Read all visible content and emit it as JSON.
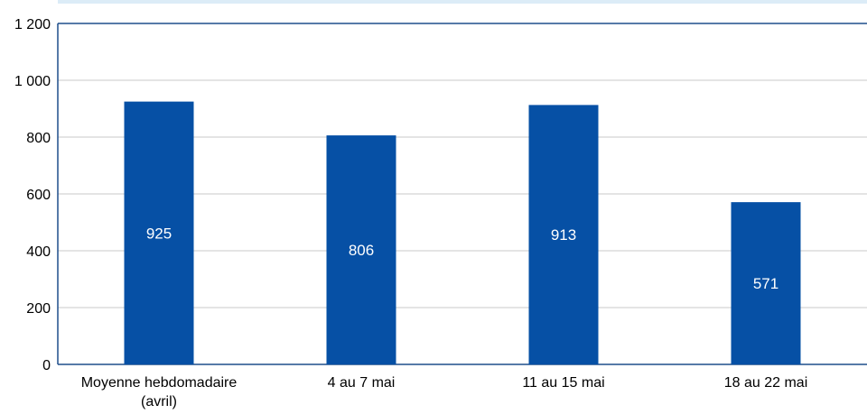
{
  "chart_data": {
    "type": "bar",
    "categories": [
      [
        "Moyenne hebdomadaire",
        "(avril)"
      ],
      [
        "4 au 7 mai"
      ],
      [
        "11 au 15 mai"
      ],
      [
        "18 au 22 mai"
      ]
    ],
    "values": [
      925,
      806,
      913,
      571
    ],
    "data_labels": [
      "925",
      "806",
      "913",
      "571"
    ],
    "y_ticks": [
      {
        "value": 0,
        "label": "0"
      },
      {
        "value": 200,
        "label": "200"
      },
      {
        "value": 400,
        "label": "400"
      },
      {
        "value": 600,
        "label": "600"
      },
      {
        "value": 800,
        "label": "800"
      },
      {
        "value": 1000,
        "label": "1 000"
      },
      {
        "value": 1200,
        "label": "1 200"
      }
    ],
    "ylim": [
      0,
      1200
    ],
    "grid": true,
    "legend": "none",
    "colors": {
      "bar": "#0650a5",
      "frame": "#1f4e8c",
      "grid": "#c8c8c8",
      "top_strip": "#dcecf7"
    }
  }
}
